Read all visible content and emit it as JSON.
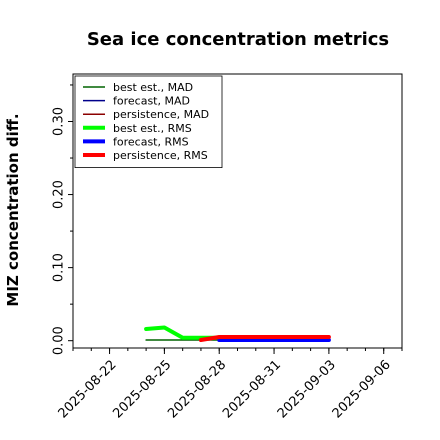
{
  "chart_data": {
    "type": "line",
    "title": "Sea ice concentration metrics",
    "xlabel": "",
    "ylabel": "MIZ concentration diff.",
    "ylim": [
      -0.01,
      0.365
    ],
    "xlim": [
      "2025-08-20",
      "2025-09-07"
    ],
    "grid": false,
    "legend_position": "top-left",
    "x_tick_labels": [
      "2025-08-22",
      "2025-08-25",
      "2025-08-28",
      "2025-08-31",
      "2025-09-03",
      "2025-09-06"
    ],
    "highlighted_tick": "2025-08-28",
    "highlight_color": "#228b22",
    "y_ticks": [
      0.0,
      0.1,
      0.2,
      0.3
    ],
    "y_tick_labels": [
      "0.00",
      "0.10",
      "0.20",
      "0.30"
    ],
    "series": [
      {
        "name": "best est., MAD",
        "color": "#006400",
        "width": "thin",
        "points": [
          [
            "2025-08-24",
            0.001
          ],
          [
            "2025-08-25",
            0.001
          ],
          [
            "2025-08-26",
            0.001
          ],
          [
            "2025-08-27",
            0.001
          ],
          [
            "2025-08-28",
            0.001
          ]
        ]
      },
      {
        "name": "forecast,  MAD",
        "color": "#00008b",
        "width": "thin",
        "points": [
          [
            "2025-08-28",
            0.001
          ],
          [
            "2025-08-29",
            0.001
          ],
          [
            "2025-08-30",
            0.001
          ],
          [
            "2025-08-31",
            0.001
          ],
          [
            "2025-09-01",
            0.001
          ],
          [
            "2025-09-02",
            0.001
          ],
          [
            "2025-09-03",
            0.001
          ]
        ]
      },
      {
        "name": "persistence, MAD",
        "color": "#8b0000",
        "width": "thin",
        "points": [
          [
            "2025-08-28",
            0.004
          ],
          [
            "2025-08-29",
            0.004
          ],
          [
            "2025-08-30",
            0.004
          ],
          [
            "2025-08-31",
            0.004
          ],
          [
            "2025-09-01",
            0.004
          ],
          [
            "2025-09-02",
            0.004
          ],
          [
            "2025-09-03",
            0.004
          ]
        ]
      },
      {
        "name": "best est., RMS",
        "color": "#00ff00",
        "width": "thick",
        "points": [
          [
            "2025-08-24",
            0.016
          ],
          [
            "2025-08-25",
            0.018
          ],
          [
            "2025-08-26",
            0.004
          ],
          [
            "2025-08-27",
            0.004
          ],
          [
            "2025-08-28",
            0.004
          ]
        ]
      },
      {
        "name": "forecast,  RMS",
        "color": "#0000ff",
        "width": "thick",
        "points": [
          [
            "2025-08-28",
            0.001
          ],
          [
            "2025-08-29",
            0.001
          ],
          [
            "2025-08-30",
            0.001
          ],
          [
            "2025-08-31",
            0.001
          ],
          [
            "2025-09-01",
            0.001
          ],
          [
            "2025-09-02",
            0.001
          ],
          [
            "2025-09-03",
            0.001
          ]
        ]
      },
      {
        "name": "persistence, RMS",
        "color": "#ff0000",
        "width": "thick",
        "points": [
          [
            "2025-08-27",
            0.001
          ],
          [
            "2025-08-28",
            0.005
          ],
          [
            "2025-08-29",
            0.005
          ],
          [
            "2025-08-30",
            0.005
          ],
          [
            "2025-08-31",
            0.005
          ],
          [
            "2025-09-01",
            0.005
          ],
          [
            "2025-09-02",
            0.005
          ],
          [
            "2025-09-03",
            0.005
          ]
        ]
      }
    ]
  }
}
